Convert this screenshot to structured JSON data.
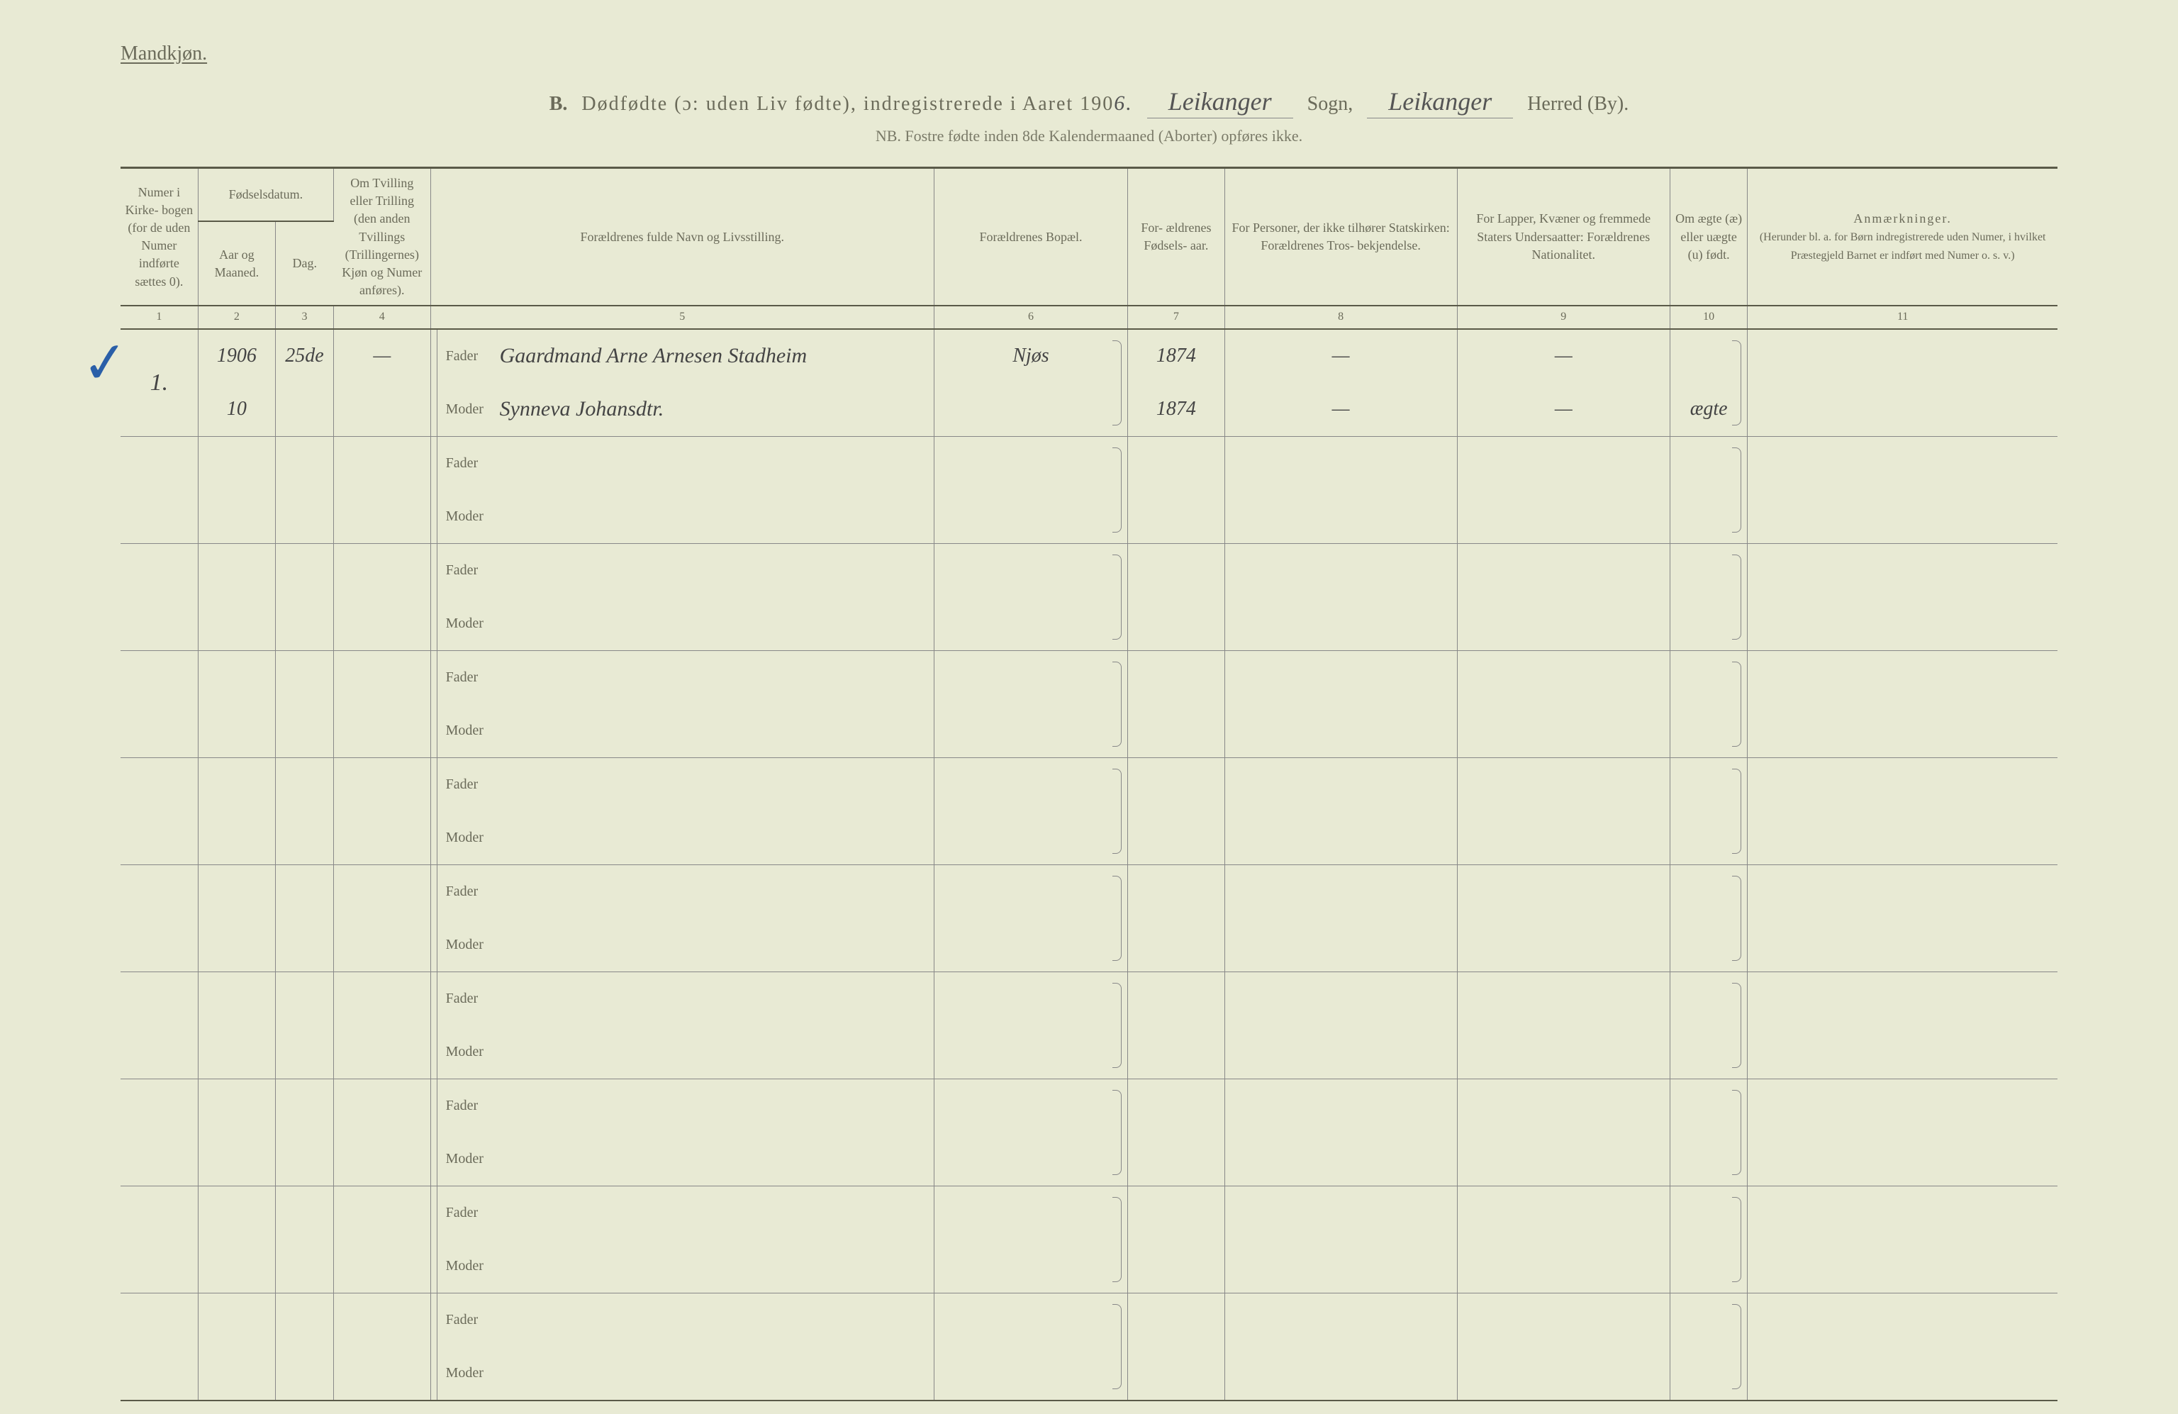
{
  "header": {
    "gender_label": "Mandkjøn.",
    "section_letter": "B.",
    "title_main": "Dødfødte (ɔ: uden Liv fødte), indregistrerede i Aaret 190",
    "year_suffix": "6.",
    "sogn_value": "Leikanger",
    "sogn_label": "Sogn,",
    "herred_value": "Leikanger",
    "herred_label": "Herred (By).",
    "subtitle": "NB.  Fostre fødte inden 8de Kalendermaaned (Aborter) opføres ikke."
  },
  "columns": {
    "c1": "Numer i Kirke- bogen (for de uden Numer indførte sættes 0).",
    "c2_group": "Fødselsdatum.",
    "c2a": "Aar og Maaned.",
    "c2b": "Dag.",
    "c3": "Om Tvilling eller Trilling (den anden Tvillings (Trillingernes) Kjøn og Numer anføres).",
    "c4": "Forældrenes fulde Navn og Livsstilling.",
    "c5": "Forældrenes Bopæl.",
    "c6": "For- ældrenes Fødsels- aar.",
    "c7": "For Personer, der ikke tilhører Statskirken: Forældrenes Tros- bekjendelse.",
    "c8": "For Lapper, Kvæner og fremmede Staters Undersaatter: Forældrenes Nationalitet.",
    "c9": "Om ægte (æ) eller uægte (u) født.",
    "c10_title": "Anmærkninger.",
    "c10_sub": "(Herunder bl. a. for Børn indregistrerede uden Numer, i hvilket Præstegjeld Barnet er indført med Numer o. s. v.)"
  },
  "column_numbers": [
    "1",
    "2",
    "3",
    "4",
    "5",
    "6",
    "7",
    "8",
    "9",
    "10",
    "11"
  ],
  "row_labels": {
    "fader": "Fader",
    "moder": "Moder"
  },
  "entries": [
    {
      "numer": "1.",
      "aar_maaned_top": "1906",
      "aar_maaned_bottom": "10",
      "dag": "25de",
      "tvilling": "—",
      "fader": "Gaardmand Arne Arnesen Stadheim",
      "moder": "Synneva Johansdtr.",
      "bopel": "Njøs",
      "fodselsaar_fader": "1874",
      "fodselsaar_moder": "1874",
      "statskirken_fader": "—",
      "statskirken_moder": "—",
      "nationalitet_fader": "—",
      "nationalitet_moder": "—",
      "aegte": "ægte",
      "anm": ""
    }
  ],
  "empty_rows": 9,
  "styling": {
    "background_color": "#e8ead4",
    "text_color": "#6b6b5a",
    "border_color": "#5a5a48",
    "line_color": "#888888",
    "handwriting_color": "#444444",
    "checkmark_color": "#2a5fa8",
    "base_font_size_pt": 18,
    "header_font_size_pt": 28,
    "handwriting_font": "cursive"
  }
}
